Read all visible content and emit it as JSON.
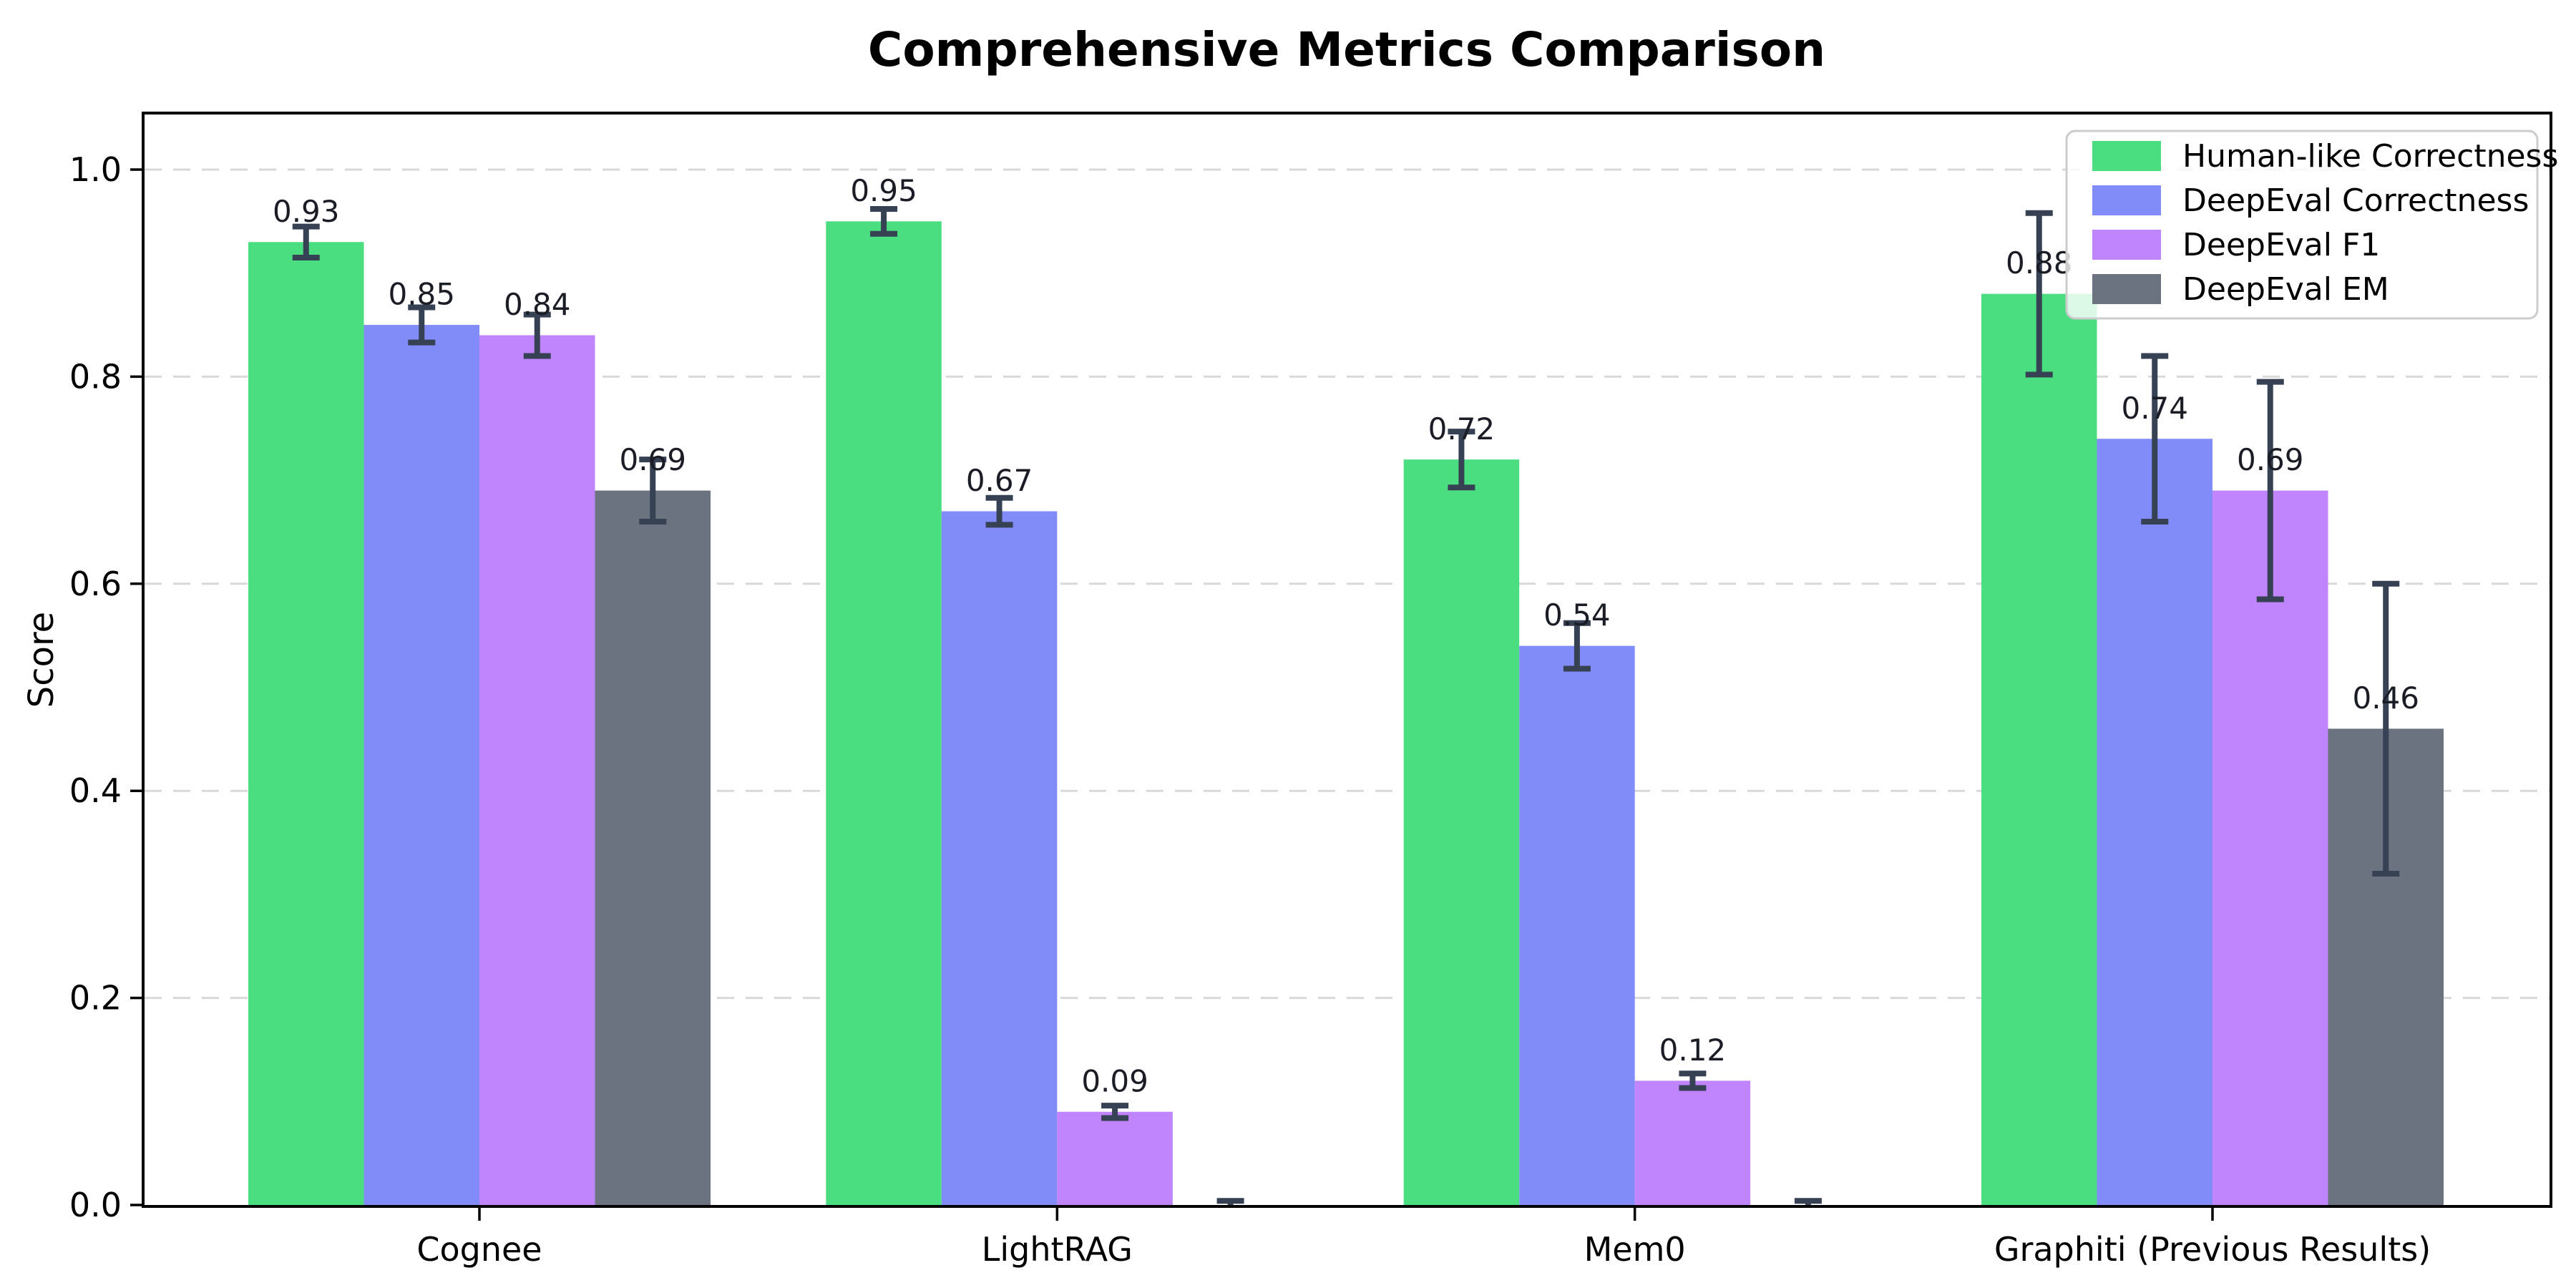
{
  "chart_data": {
    "type": "bar",
    "title": "Comprehensive Metrics Comparison",
    "xlabel": "",
    "ylabel": "Score",
    "categories": [
      "Cognee",
      "LightRAG",
      "Mem0",
      "Graphiti (Previous Results)"
    ],
    "series": [
      {
        "name": "Human-like Correctness",
        "color": "#4ade80",
        "values": [
          0.93,
          0.95,
          0.72,
          0.88
        ],
        "errors": [
          0.015,
          0.012,
          0.027,
          0.078
        ],
        "labels": [
          "0.93",
          "0.95",
          "0.72",
          "0.88"
        ]
      },
      {
        "name": "DeepEval Correctness",
        "color": "#818cf8",
        "values": [
          0.85,
          0.67,
          0.54,
          0.74
        ],
        "errors": [
          0.017,
          0.013,
          0.022,
          0.08
        ],
        "labels": [
          "0.85",
          "0.67",
          "0.54",
          "0.74"
        ]
      },
      {
        "name": "DeepEval F1",
        "color": "#c084fc",
        "values": [
          0.84,
          0.09,
          0.12,
          0.69
        ],
        "errors": [
          0.02,
          0.006,
          0.007,
          0.105
        ],
        "labels": [
          "0.84",
          "0.09",
          "0.12",
          "0.69"
        ]
      },
      {
        "name": "DeepEval EM",
        "color": "#6b7280",
        "values": [
          0.69,
          0.0,
          0.0,
          0.46
        ],
        "errors": [
          0.03,
          0.004,
          0.004,
          0.14
        ],
        "labels": [
          "0.69",
          "",
          "",
          "0.46"
        ]
      }
    ],
    "ylim": [
      0.0,
      1.05
    ],
    "yticks": [
      0.0,
      0.2,
      0.4,
      0.6,
      0.8,
      1.0
    ],
    "ytick_labels": [
      "0.0",
      "0.2",
      "0.4",
      "0.6",
      "0.8",
      "1.0"
    ],
    "grid": "horizontal-dashed",
    "legend_position": "upper-right"
  },
  "style": {
    "background": "#ffffff",
    "spine_color": "#000000",
    "grid_color": "#d9d9d9",
    "error_bar_color": "#364153",
    "value_label_color": "#1a1d26",
    "legend_border_color": "#cccccc",
    "legend_background": "rgba(255,255,255,0.8)"
  }
}
